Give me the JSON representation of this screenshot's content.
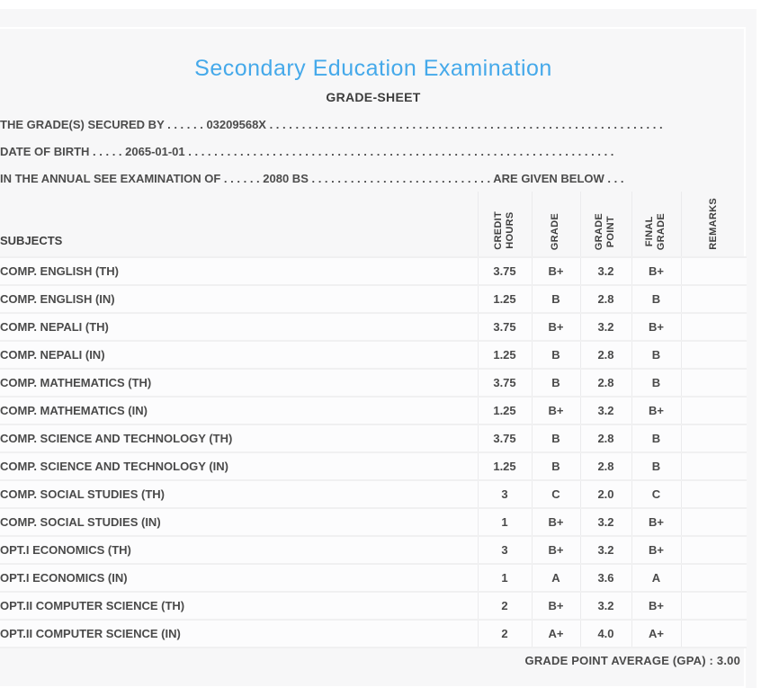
{
  "header": {
    "title": "Secondary Education Examination",
    "subtitle": "GRADE-SHEET"
  },
  "info_lines": [
    "THE GRADE(S) SECURED BY . . . . . . 03209568X . . . . . . . . . . . . . . . . . . . . . . . . . . . . . . . . . . . . . . . . . . . . . . . . . . . . . . . . . . . . .",
    "DATE OF BIRTH . . . . . 2065-01-01 . . . . . . . . . . . . . . . . . . . . . . . . . . . . . . . . . . . . . . . . . . . . . . . . . . . . . . . . . . . . . . . . . .",
    "IN THE ANNUAL SEE EXAMINATION OF . . . . . . 2080 BS . . . . . . . . . . . . . . . . . . . . . . . . . . . . ARE GIVEN BELOW . . ."
  ],
  "table": {
    "subjects_header": "SUBJECTS",
    "columns": [
      "CREDIT\nHOURS",
      "GRADE",
      "GRADE\nPOINT",
      "FINAL\nGRADE",
      "REMARKS"
    ],
    "rows": [
      {
        "subject": "COMP. ENGLISH (TH)",
        "credit_hours": "3.75",
        "grade": "B+",
        "grade_point": "3.2",
        "final_grade": "B+",
        "remarks": ""
      },
      {
        "subject": "COMP. ENGLISH (IN)",
        "credit_hours": "1.25",
        "grade": "B",
        "grade_point": "2.8",
        "final_grade": "B",
        "remarks": ""
      },
      {
        "subject": "COMP. NEPALI (TH)",
        "credit_hours": "3.75",
        "grade": "B+",
        "grade_point": "3.2",
        "final_grade": "B+",
        "remarks": ""
      },
      {
        "subject": "COMP. NEPALI (IN)",
        "credit_hours": "1.25",
        "grade": "B",
        "grade_point": "2.8",
        "final_grade": "B",
        "remarks": ""
      },
      {
        "subject": "COMP. MATHEMATICS (TH)",
        "credit_hours": "3.75",
        "grade": "B",
        "grade_point": "2.8",
        "final_grade": "B",
        "remarks": ""
      },
      {
        "subject": "COMP. MATHEMATICS (IN)",
        "credit_hours": "1.25",
        "grade": "B+",
        "grade_point": "3.2",
        "final_grade": "B+",
        "remarks": ""
      },
      {
        "subject": "COMP. SCIENCE AND TECHNOLOGY (TH)",
        "credit_hours": "3.75",
        "grade": "B",
        "grade_point": "2.8",
        "final_grade": "B",
        "remarks": ""
      },
      {
        "subject": "COMP. SCIENCE AND TECHNOLOGY (IN)",
        "credit_hours": "1.25",
        "grade": "B",
        "grade_point": "2.8",
        "final_grade": "B",
        "remarks": ""
      },
      {
        "subject": "COMP. SOCIAL STUDIES (TH)",
        "credit_hours": "3",
        "grade": "C",
        "grade_point": "2.0",
        "final_grade": "C",
        "remarks": ""
      },
      {
        "subject": "COMP. SOCIAL STUDIES (IN)",
        "credit_hours": "1",
        "grade": "B+",
        "grade_point": "3.2",
        "final_grade": "B+",
        "remarks": ""
      },
      {
        "subject": "OPT.I ECONOMICS (TH)",
        "credit_hours": "3",
        "grade": "B+",
        "grade_point": "3.2",
        "final_grade": "B+",
        "remarks": ""
      },
      {
        "subject": "OPT.I ECONOMICS (IN)",
        "credit_hours": "1",
        "grade": "A",
        "grade_point": "3.6",
        "final_grade": "A",
        "remarks": ""
      },
      {
        "subject": "OPT.II COMPUTER SCIENCE (TH)",
        "credit_hours": "2",
        "grade": "B+",
        "grade_point": "3.2",
        "final_grade": "B+",
        "remarks": ""
      },
      {
        "subject": "OPT.II COMPUTER SCIENCE (IN)",
        "credit_hours": "2",
        "grade": "A+",
        "grade_point": "4.0",
        "final_grade": "A+",
        "remarks": ""
      }
    ]
  },
  "footer": {
    "gpa_line": "GRADE POINT AVERAGE (GPA) : 3.00"
  },
  "colors": {
    "accent_blue": "#45a9ea",
    "text_dark": "#4a4a4a",
    "page_gray": "#f7f7f8"
  }
}
